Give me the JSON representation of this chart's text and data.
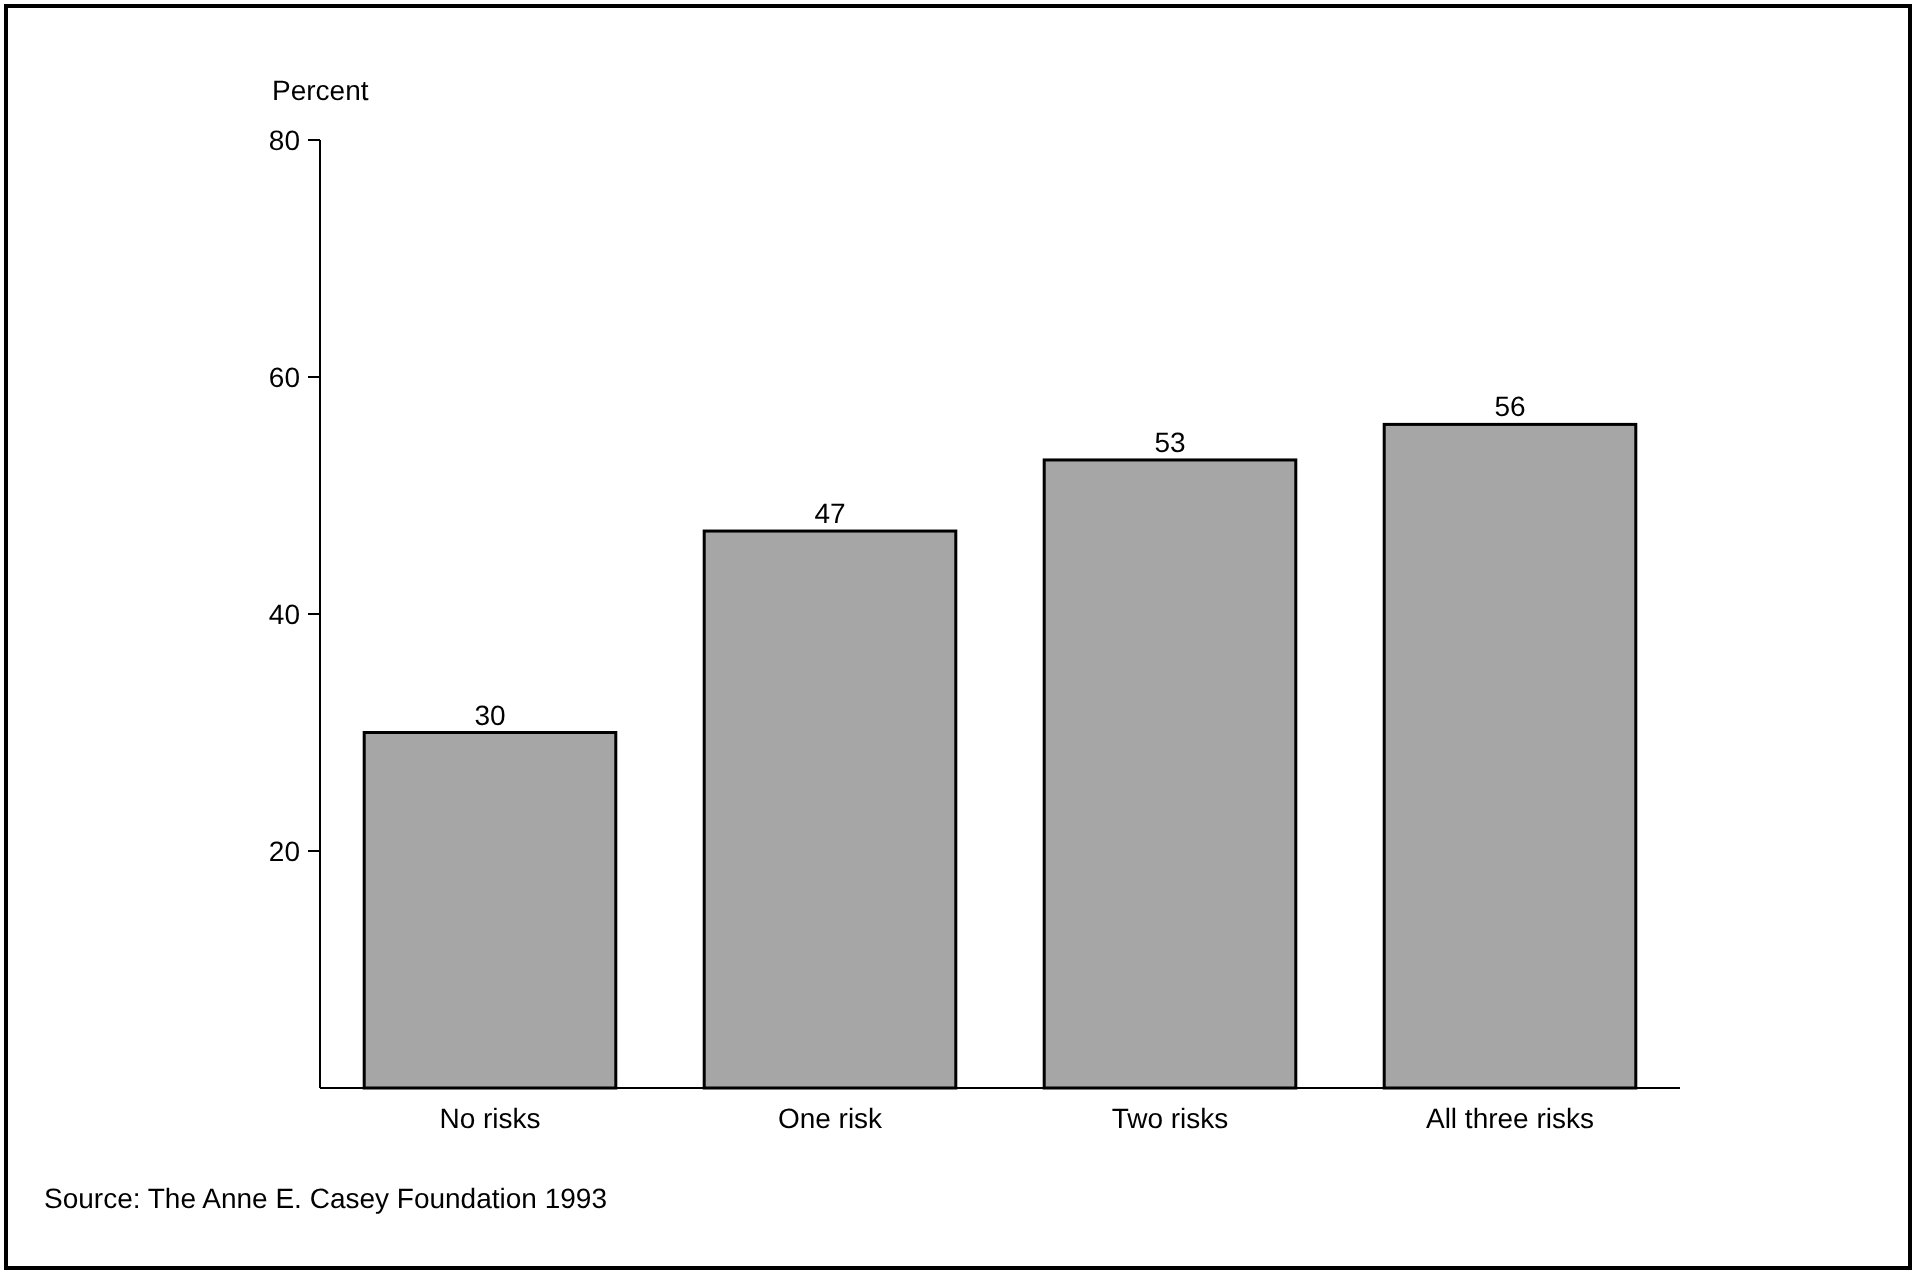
{
  "chart_data": {
    "type": "bar",
    "ylabel": "Percent",
    "categories": [
      "No risks",
      "One risk",
      "Two risks",
      "All three risks"
    ],
    "values": [
      30,
      47,
      53,
      56
    ],
    "color": "#a6a6a6",
    "ylim": [
      0,
      80
    ],
    "yticks": [
      20,
      40,
      60,
      80
    ],
    "data_labels": true,
    "annotations": [
      "Source: The Anne E. Casey Foundation 1993"
    ]
  }
}
